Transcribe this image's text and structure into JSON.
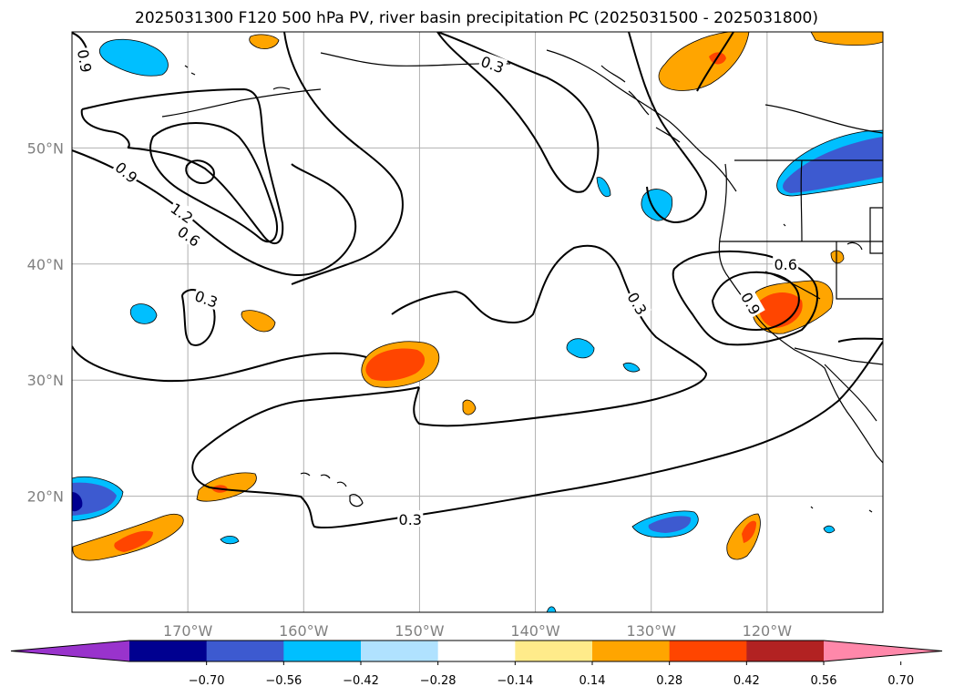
{
  "title": "2025031300 F120 500 hPa PV, river basin precipitation PC (2025031500 - 2025031800)",
  "map": {
    "lon_ticks": [
      {
        "lon": -170,
        "label": "170°W"
      },
      {
        "lon": -160,
        "label": "160°W"
      },
      {
        "lon": -150,
        "label": "150°W"
      },
      {
        "lon": -140,
        "label": "140°W"
      },
      {
        "lon": -130,
        "label": "130°W"
      },
      {
        "lon": -120,
        "label": "120°W"
      }
    ],
    "lat_ticks": [
      {
        "lat": 50,
        "label": "50°N"
      },
      {
        "lat": 40,
        "label": "40°N"
      },
      {
        "lat": 30,
        "label": "30°N"
      },
      {
        "lat": 20,
        "label": "20°N"
      }
    ],
    "pv_contour_labels": [
      {
        "text": "0.9",
        "lon": -178.9,
        "lat": 57.5,
        "rot": 80
      },
      {
        "text": "0.3",
        "lon": -143.7,
        "lat": 57.2,
        "rot": 20
      },
      {
        "text": "0.9",
        "lon": -175.3,
        "lat": 47.9,
        "rot": 40
      },
      {
        "text": "1.2",
        "lon": -170.5,
        "lat": 44.4,
        "rot": 35
      },
      {
        "text": "0.6",
        "lon": -169.9,
        "lat": 42.4,
        "rot": 35
      },
      {
        "text": "0.3",
        "lon": -168.4,
        "lat": 37.0,
        "rot": 20
      },
      {
        "text": "0.3",
        "lon": -131.2,
        "lat": 36.6,
        "rot": 60
      },
      {
        "text": "0.6",
        "lon": -118.4,
        "lat": 40.0,
        "rot": 0
      },
      {
        "text": "0.9",
        "lon": -121.4,
        "lat": 36.6,
        "rot": 60
      },
      {
        "text": "0.3",
        "lon": -150.8,
        "lat": 18.0,
        "rot": 0
      }
    ]
  },
  "colorbar": {
    "colors": [
      "#9933cc",
      "#000090",
      "#3d5ad0",
      "#00bfff",
      "#b0e2ff",
      "#ffffff",
      "#ffeb8a",
      "#ffa500",
      "#ff4500",
      "#b22222",
      "#ff88aa"
    ],
    "tick_labels": [
      "−0.70",
      "−0.56",
      "−0.42",
      "−0.28",
      "−0.14",
      "0.14",
      "0.28",
      "0.42",
      "0.56",
      "0.70"
    ]
  }
}
